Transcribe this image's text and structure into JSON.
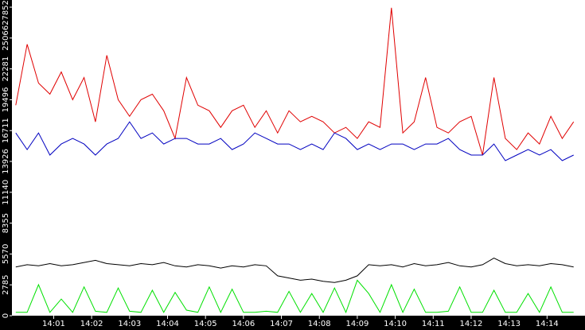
{
  "chart_data": {
    "type": "line",
    "x": [
      0,
      0.3,
      0.6,
      0.9,
      1.2,
      1.5,
      1.8,
      2.1,
      2.4,
      2.7,
      3.0,
      3.3,
      3.6,
      3.9,
      4.2,
      4.5,
      4.8,
      5.1,
      5.4,
      5.7,
      6.0,
      6.3,
      6.6,
      6.9,
      7.2,
      7.5,
      7.8,
      8.1,
      8.4,
      8.7,
      9.0,
      9.3,
      9.6,
      9.9,
      10.2,
      10.5,
      10.8,
      11.1,
      11.4,
      11.7,
      12.0,
      12.3,
      12.6,
      12.9,
      13.2,
      13.5,
      13.8,
      14.1,
      14.4,
      14.7
    ],
    "series": [
      {
        "color": "#e00000",
        "values": [
          19000,
          24500,
          21000,
          20000,
          22000,
          19500,
          21500,
          17500,
          23500,
          19500,
          18000,
          19500,
          20000,
          18500,
          16000,
          21500,
          19000,
          18500,
          17000,
          18500,
          19000,
          17000,
          18500,
          16500,
          18500,
          17500,
          18000,
          17500,
          16500,
          17000,
          16000,
          17500,
          17000,
          27800,
          16500,
          17500,
          21500,
          17000,
          16500,
          17500,
          18000,
          14500,
          21500,
          16000,
          15000,
          16500,
          15500,
          18000,
          16000,
          17500
        ]
      },
      {
        "color": "#0000c0",
        "values": [
          16500,
          15000,
          16500,
          14500,
          15500,
          16000,
          15500,
          14500,
          15500,
          16000,
          17500,
          16000,
          16500,
          15500,
          16000,
          16000,
          15500,
          15500,
          16000,
          15000,
          15500,
          16500,
          16000,
          15500,
          15500,
          15000,
          15500,
          15000,
          16500,
          16000,
          15000,
          15500,
          15000,
          15500,
          15500,
          15000,
          15500,
          15500,
          16000,
          15000,
          14500,
          14500,
          15500,
          14000,
          14500,
          15000,
          14500,
          15000,
          14000,
          14500
        ]
      },
      {
        "color": "#000000",
        "values": [
          4400,
          4600,
          4500,
          4700,
          4500,
          4600,
          4800,
          5000,
          4700,
          4600,
          4500,
          4700,
          4600,
          4800,
          4500,
          4400,
          4600,
          4500,
          4300,
          4500,
          4400,
          4600,
          4500,
          3600,
          3400,
          3200,
          3300,
          3100,
          3000,
          3200,
          3600,
          4600,
          4500,
          4600,
          4400,
          4700,
          4500,
          4600,
          4800,
          4500,
          4400,
          4600,
          5200,
          4700,
          4500,
          4600,
          4500,
          4700,
          4600,
          4400
        ]
      },
      {
        "color": "#00e000",
        "values": [
          300,
          300,
          2800,
          300,
          1500,
          300,
          2600,
          400,
          300,
          2500,
          400,
          300,
          2300,
          300,
          2100,
          500,
          300,
          2600,
          300,
          2400,
          300,
          300,
          400,
          300,
          2200,
          300,
          2000,
          300,
          2500,
          300,
          3200,
          2000,
          300,
          2800,
          300,
          2400,
          300,
          300,
          400,
          2600,
          300,
          300,
          2300,
          300,
          300,
          2000,
          300,
          2600,
          300,
          300
        ]
      }
    ],
    "xlim": [
      -0.1,
      15
    ],
    "xticks": [
      {
        "value": 1,
        "label": "14:01"
      },
      {
        "value": 2,
        "label": "14:02"
      },
      {
        "value": 3,
        "label": "14:03"
      },
      {
        "value": 4,
        "label": "14:04"
      },
      {
        "value": 5,
        "label": "14:05"
      },
      {
        "value": 6,
        "label": "14:06"
      },
      {
        "value": 7,
        "label": "14:07"
      },
      {
        "value": 8,
        "label": "14:08"
      },
      {
        "value": 9,
        "label": "14:09"
      },
      {
        "value": 10,
        "label": "14:10"
      },
      {
        "value": 11,
        "label": "14:11"
      },
      {
        "value": 12,
        "label": "14:12"
      },
      {
        "value": 13,
        "label": "14:13"
      },
      {
        "value": 14,
        "label": "14:14"
      }
    ],
    "ylim": [
      0,
      28500
    ],
    "yticks": [
      0,
      2785,
      5570,
      8355,
      11140,
      13926,
      16711,
      19496,
      22281,
      25066,
      27852
    ]
  }
}
